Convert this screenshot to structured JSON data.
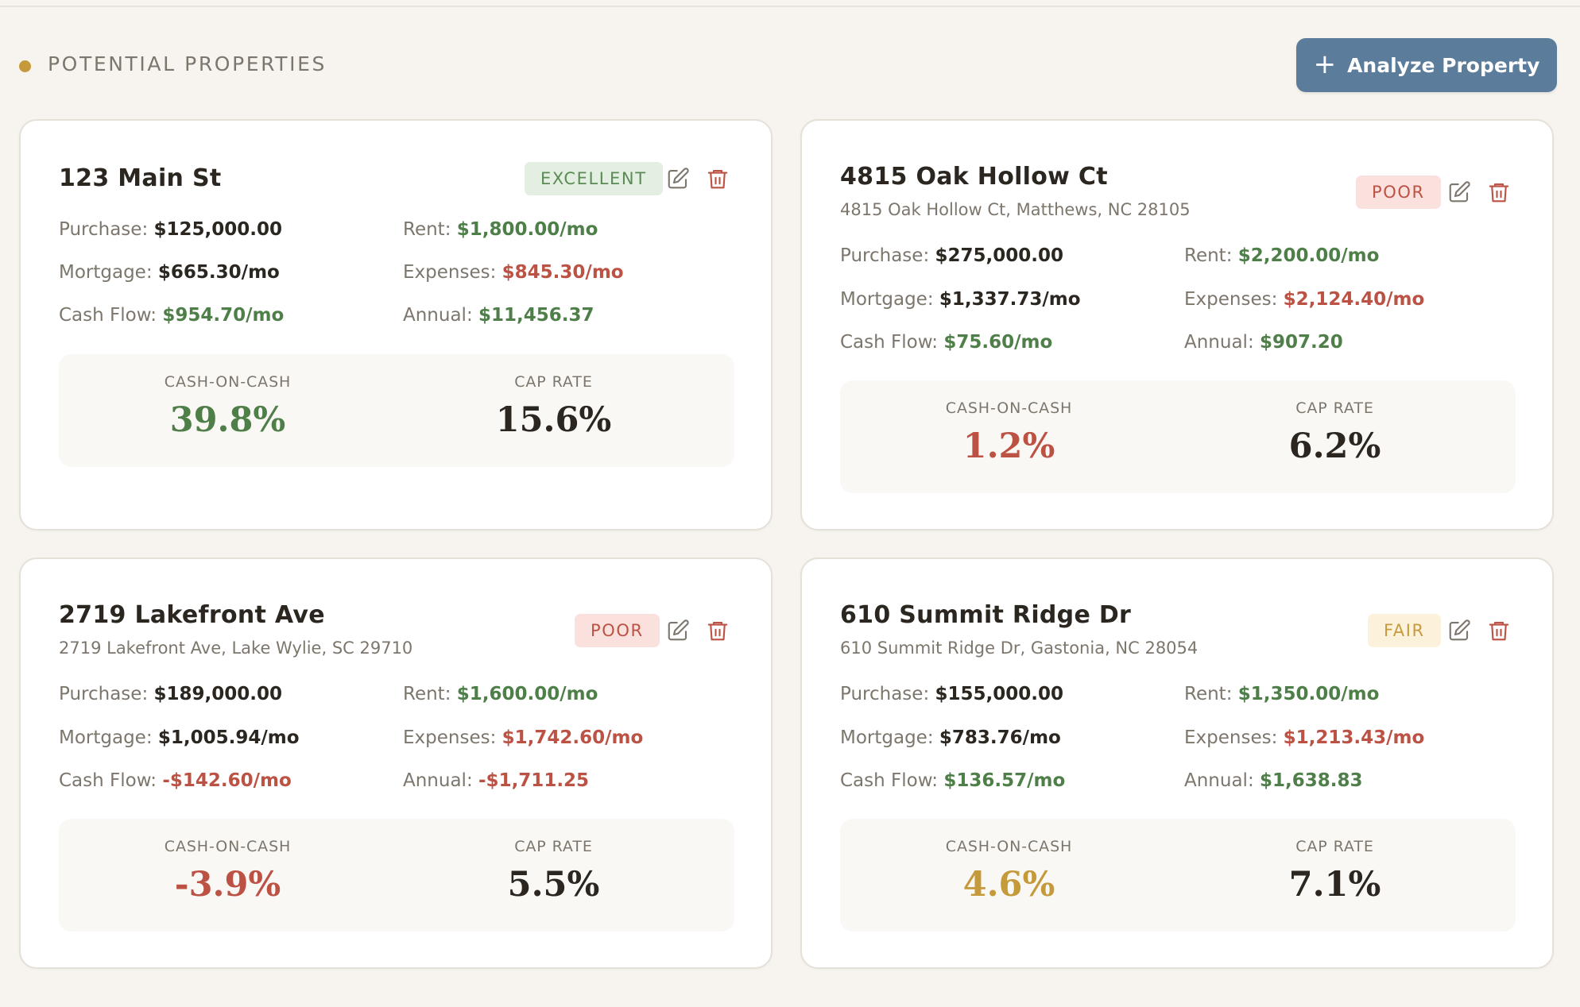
{
  "section": {
    "title": "POTENTIAL PROPERTIES",
    "button_label": "Analyze Property",
    "button_icon": "plus-icon"
  },
  "colors": {
    "accent_dot": "#c49a3a",
    "button": "#5c7c9c",
    "positive": "#4f7f49",
    "negative": "#bc5244",
    "fair": "#c49a3a"
  },
  "labels": {
    "purchase": "Purchase:",
    "rent": "Rent:",
    "mortgage": "Mortgage:",
    "expenses": "Expenses:",
    "cash_flow": "Cash Flow:",
    "annual": "Annual:",
    "coc": "CASH-ON-CASH",
    "cap": "CAP RATE"
  },
  "properties": [
    {
      "title": "123 Main St",
      "address": "",
      "rating": "EXCELLENT",
      "purchase": "$125,000.00",
      "rent": "$1,800.00/mo",
      "mortgage": "$665.30/mo",
      "expenses": "$845.30/mo",
      "cash_flow": "$954.70/mo",
      "annual": "$11,456.37",
      "cash_on_cash": "39.8%",
      "cap_rate": "15.6%"
    },
    {
      "title": "4815 Oak Hollow Ct",
      "address": "4815 Oak Hollow Ct, Matthews, NC 28105",
      "rating": "POOR",
      "purchase": "$275,000.00",
      "rent": "$2,200.00/mo",
      "mortgage": "$1,337.73/mo",
      "expenses": "$2,124.40/mo",
      "cash_flow": "$75.60/mo",
      "annual": "$907.20",
      "cash_on_cash": "1.2%",
      "cap_rate": "6.2%"
    },
    {
      "title": "2719 Lakefront Ave",
      "address": "2719 Lakefront Ave, Lake Wylie, SC 29710",
      "rating": "POOR",
      "purchase": "$189,000.00",
      "rent": "$1,600.00/mo",
      "mortgage": "$1,005.94/mo",
      "expenses": "$1,742.60/mo",
      "cash_flow": "-$142.60/mo",
      "annual": "-$1,711.25",
      "cash_on_cash": "-3.9%",
      "cap_rate": "5.5%"
    },
    {
      "title": "610 Summit Ridge Dr",
      "address": "610 Summit Ridge Dr, Gastonia, NC 28054",
      "rating": "FAIR",
      "purchase": "$155,000.00",
      "rent": "$1,350.00/mo",
      "mortgage": "$783.76/mo",
      "expenses": "$1,213.43/mo",
      "cash_flow": "$136.57/mo",
      "annual": "$1,638.83",
      "cash_on_cash": "4.6%",
      "cap_rate": "7.1%"
    }
  ]
}
